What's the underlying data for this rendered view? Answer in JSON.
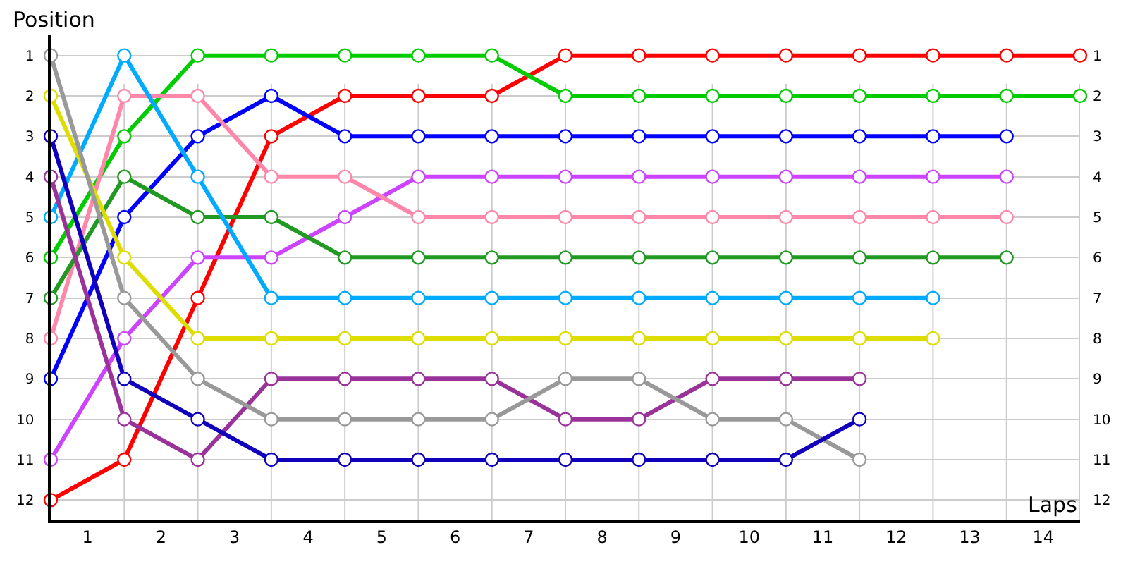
{
  "chart_data": {
    "type": "line",
    "ylabel": "Position",
    "xlabel": "Laps",
    "xlim": [
      0,
      14
    ],
    "ylim": [
      12.5,
      0.5
    ],
    "xticks": [
      {
        "value": 0,
        "label": null
      },
      {
        "value": 0.5,
        "label": "1"
      },
      {
        "value": 1,
        "label": null
      },
      {
        "value": 1.5,
        "label": "2"
      },
      {
        "value": 2,
        "label": null
      },
      {
        "value": 2.5,
        "label": "3"
      },
      {
        "value": 3,
        "label": null
      },
      {
        "value": 3.5,
        "label": "4"
      },
      {
        "value": 4,
        "label": null
      },
      {
        "value": 4.5,
        "label": "5"
      },
      {
        "value": 5,
        "label": null
      },
      {
        "value": 5.5,
        "label": "6"
      },
      {
        "value": 6,
        "label": null
      },
      {
        "value": 6.5,
        "label": "7"
      },
      {
        "value": 7,
        "label": null
      },
      {
        "value": 7.5,
        "label": "8"
      },
      {
        "value": 8,
        "label": null
      },
      {
        "value": 8.5,
        "label": "9"
      },
      {
        "value": 9,
        "label": null
      },
      {
        "value": 9.5,
        "label": "10"
      },
      {
        "value": 10,
        "label": null
      },
      {
        "value": 10.5,
        "label": "11"
      },
      {
        "value": 11,
        "label": null
      },
      {
        "value": 11.5,
        "label": "12"
      },
      {
        "value": 12,
        "label": null
      },
      {
        "value": 12.5,
        "label": "13"
      },
      {
        "value": 13,
        "label": null
      },
      {
        "value": 13.5,
        "label": "14"
      },
      {
        "value": 14,
        "label": null
      }
    ],
    "yticks": [
      1,
      2,
      3,
      4,
      5,
      6,
      7,
      8,
      9,
      10,
      11,
      12
    ],
    "y2lim": [
      12.5,
      0.5
    ],
    "y2ticks": [
      1,
      2,
      3,
      4,
      5,
      6,
      7,
      8,
      9,
      10,
      11,
      12
    ],
    "grid": true,
    "marker": "circle",
    "line_style": "solid",
    "x": [
      0,
      1,
      2,
      3,
      4,
      5,
      6,
      7,
      8,
      9,
      10,
      11,
      12,
      13,
      14
    ],
    "series": [
      {
        "color": "#ff0000",
        "values": [
          12,
          11,
          7,
          3,
          2,
          2,
          2,
          1,
          1,
          1,
          1,
          1,
          1,
          1,
          1
        ]
      },
      {
        "color": "#00cc00",
        "values": [
          6,
          3,
          1,
          1,
          1,
          1,
          1,
          2,
          2,
          2,
          2,
          2,
          2,
          2,
          2
        ]
      },
      {
        "color": "#0000ff",
        "values": [
          9,
          5,
          3,
          2,
          3,
          3,
          3,
          3,
          3,
          3,
          3,
          3,
          3,
          3,
          null
        ]
      },
      {
        "color": "#cc44ff",
        "values": [
          11,
          8,
          6,
          6,
          5,
          4,
          4,
          4,
          4,
          4,
          4,
          4,
          4,
          4,
          null
        ]
      },
      {
        "color": "#ff88aa",
        "values": [
          8,
          2,
          2,
          4,
          4,
          5,
          5,
          5,
          5,
          5,
          5,
          5,
          5,
          5,
          null
        ]
      },
      {
        "color": "#229922",
        "values": [
          7,
          4,
          5,
          5,
          6,
          6,
          6,
          6,
          6,
          6,
          6,
          6,
          6,
          6,
          null
        ]
      },
      {
        "color": "#00aaff",
        "values": [
          5,
          1,
          4,
          7,
          7,
          7,
          7,
          7,
          7,
          7,
          7,
          7,
          7,
          null,
          null
        ]
      },
      {
        "color": "#dddd00",
        "values": [
          2,
          6,
          8,
          8,
          8,
          8,
          8,
          8,
          8,
          8,
          8,
          8,
          8,
          null,
          null
        ]
      },
      {
        "color": "#993399",
        "values": [
          4,
          10,
          11,
          9,
          9,
          9,
          9,
          10,
          10,
          9,
          9,
          9,
          null,
          null,
          null
        ]
      },
      {
        "color": "#999999",
        "values": [
          1,
          7,
          9,
          10,
          10,
          10,
          10,
          9,
          9,
          10,
          10,
          11,
          null,
          null,
          null
        ]
      },
      {
        "color": "#1100bb",
        "values": [
          3,
          9,
          10,
          11,
          11,
          11,
          11,
          11,
          11,
          11,
          11,
          10,
          null,
          null,
          null
        ]
      }
    ]
  }
}
